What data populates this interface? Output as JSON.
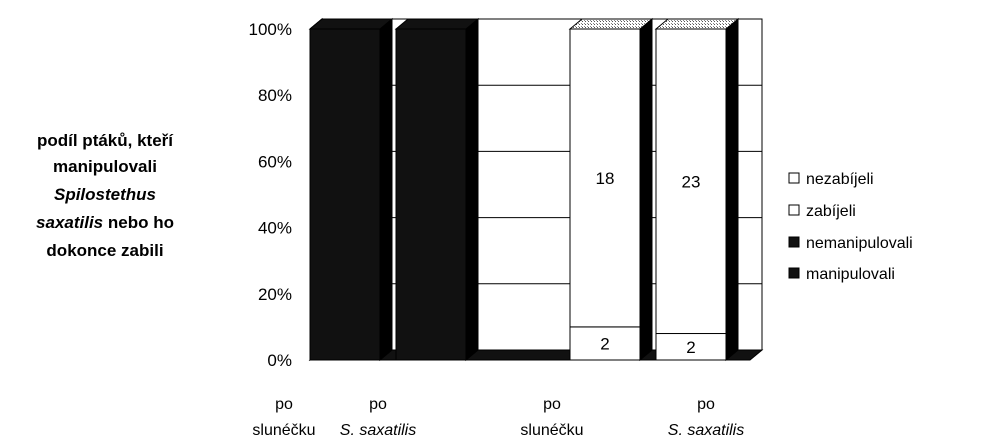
{
  "chart_data": {
    "type": "bar",
    "stacked": "percent",
    "three_d": true,
    "ylabel_lines": [
      {
        "parts": [
          {
            "text": "podíl ptáků, kteří",
            "italic": false
          }
        ]
      },
      {
        "parts": [
          {
            "text": "manipulovali",
            "italic": false
          }
        ]
      },
      {
        "parts": [
          {
            "text": "Spilostethus",
            "italic": true
          }
        ]
      },
      {
        "parts": [
          {
            "text": "saxatilis",
            "italic": true
          },
          {
            "text": " nebo ho",
            "italic": false
          }
        ]
      },
      {
        "parts": [
          {
            "text": "dokonce zabili",
            "italic": false
          }
        ]
      }
    ],
    "yticks": [
      "0%",
      "20%",
      "40%",
      "60%",
      "80%",
      "100%"
    ],
    "ylim": [
      0,
      100
    ],
    "grid": true,
    "legend_position": "right",
    "categories": [
      {
        "line1": "po",
        "line2": "slunéčku",
        "line2_italic": false
      },
      {
        "line1": "po",
        "line2": "S. saxatilis",
        "line2_italic": true
      },
      {
        "line1": "po",
        "line2": "slunéčku",
        "line2_italic": false
      },
      {
        "line1": "po",
        "line2": "S. saxatilis",
        "line2_italic": true
      }
    ],
    "series": [
      {
        "name": "manipulovali",
        "color": "#111111",
        "values": [
          100,
          100,
          0,
          0
        ],
        "labels": [
          "",
          "",
          "",
          ""
        ]
      },
      {
        "name": "nemanipulovali",
        "color": "#111111",
        "values": [
          0,
          0,
          0,
          0
        ],
        "labels": [
          "",
          "",
          "",
          ""
        ]
      },
      {
        "name": "zabíjeli",
        "color": "#ffffff",
        "values": [
          0,
          0,
          10,
          8
        ],
        "labels": [
          "",
          "",
          "2",
          "2"
        ]
      },
      {
        "name": "nezabíjeli",
        "color": "#ffffff",
        "values": [
          0,
          0,
          90,
          92
        ],
        "labels": [
          "",
          "",
          "18",
          "23"
        ]
      }
    ],
    "legend_order": [
      "nezabíjeli",
      "zabíjeli",
      "nemanipulovali",
      "manipulovali"
    ]
  }
}
